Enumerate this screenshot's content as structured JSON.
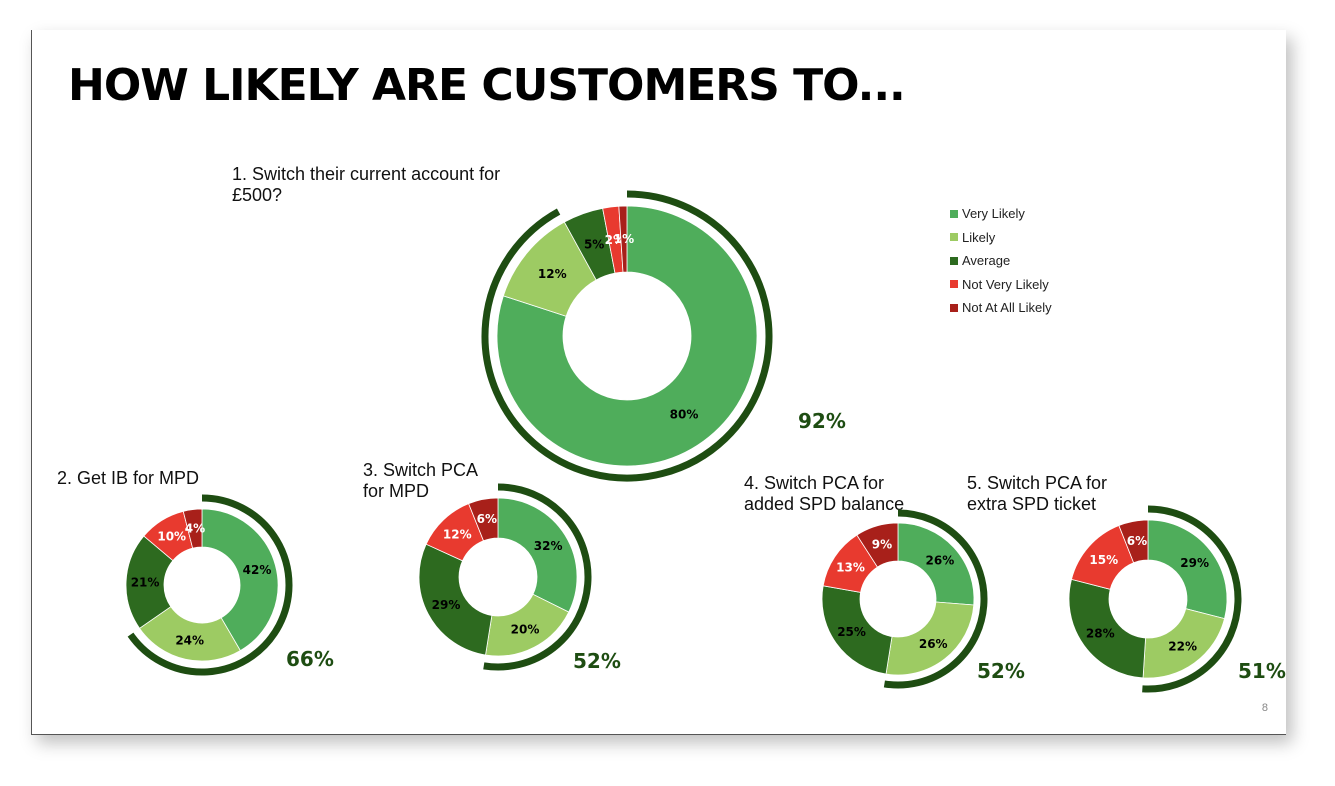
{
  "title": "HOW LIKELY ARE CUSTOMERS TO...",
  "page_number": "8",
  "colors": {
    "very_likely": "#4fad5b",
    "likely": "#9dcb63",
    "average": "#2d6a1f",
    "not_very_likely": "#e83a2f",
    "not_at_all_likely": "#a8201a",
    "arc": "#1e4d12"
  },
  "legend": [
    "Very Likely",
    "Likely",
    "Average",
    "Not Very Likely",
    "Not At All Likely"
  ],
  "questions": [
    "1. Switch their current account for\n£500?",
    "2. Get IB for MPD",
    "3. Switch PCA\nfor MPD",
    "4. Switch PCA for\nadded SPD balance",
    "5. Switch PCA for\nextra SPD ticket"
  ],
  "chart_data": [
    {
      "type": "pie",
      "title": "1. Switch their current account for £500?",
      "categories": [
        "Very Likely",
        "Likely",
        "Average",
        "Not Very Likely",
        "Not At All Likely"
      ],
      "values": [
        80,
        12,
        5,
        2,
        1
      ],
      "labels": [
        "80%",
        "12%",
        "5%",
        "2%",
        "1%"
      ],
      "total_label": "92%"
    },
    {
      "type": "pie",
      "title": "2. Get IB for MPD",
      "categories": [
        "Very Likely",
        "Likely",
        "Average",
        "Not Very Likely",
        "Not At All Likely"
      ],
      "values": [
        42,
        24,
        21,
        10,
        4
      ],
      "labels": [
        "42%",
        "24%",
        "21%",
        "10%",
        "4%"
      ],
      "total_label": "66%"
    },
    {
      "type": "pie",
      "title": "3. Switch PCA for MPD",
      "categories": [
        "Very Likely",
        "Likely",
        "Average",
        "Not Very Likely",
        "Not At All Likely"
      ],
      "values": [
        32,
        20,
        29,
        12,
        6
      ],
      "labels": [
        "32%",
        "20%",
        "29%",
        "12%",
        "6%"
      ],
      "total_label": "52%"
    },
    {
      "type": "pie",
      "title": "4. Switch PCA for added SPD balance",
      "categories": [
        "Very Likely",
        "Likely",
        "Average",
        "Not Very Likely",
        "Not At All Likely"
      ],
      "values": [
        26,
        26,
        25,
        13,
        9
      ],
      "labels": [
        "26%",
        "26%",
        "25%",
        "13%",
        "9%"
      ],
      "total_label": "52%"
    },
    {
      "type": "pie",
      "title": "5. Switch PCA for extra SPD ticket",
      "categories": [
        "Very Likely",
        "Likely",
        "Average",
        "Not Very Likely",
        "Not At All Likely"
      ],
      "values": [
        29,
        22,
        28,
        15,
        6
      ],
      "labels": [
        "29%",
        "22%",
        "28%",
        "15%",
        "6%"
      ],
      "total_label": "51%"
    }
  ]
}
